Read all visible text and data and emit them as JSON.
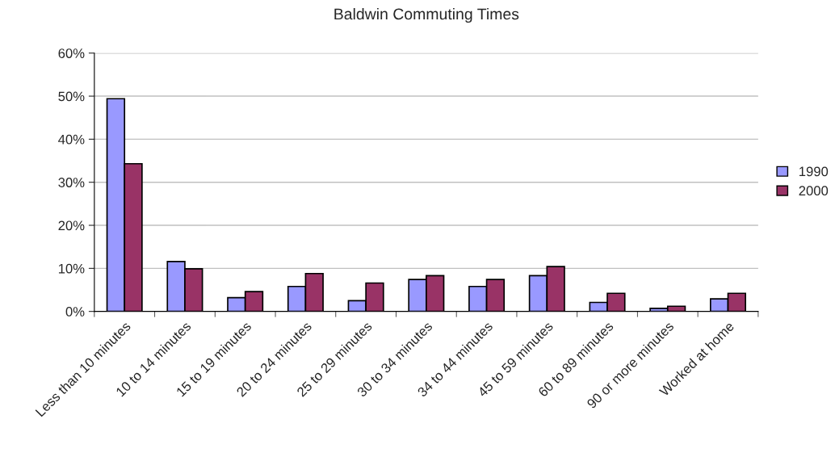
{
  "chart_data": {
    "type": "bar",
    "title": "Baldwin Commuting Times",
    "categories": [
      "Less than 10 minutes",
      "10 to 14 minutes",
      "15 to 19 minutes",
      "20 to 24 minutes",
      "25 to 29 minutes",
      "30 to 34 minutes",
      "34 to 44 minutes",
      "45 to 59 minutes",
      "60 to 89 minutes",
      "90 or more minutes",
      "Worked at home"
    ],
    "series": [
      {
        "name": "1990",
        "color": "#9999ff",
        "values": [
          49.4,
          11.6,
          3.2,
          5.8,
          2.5,
          7.4,
          5.8,
          8.3,
          2.1,
          0.7,
          2.9
        ]
      },
      {
        "name": "2000",
        "color": "#993366",
        "values": [
          34.3,
          9.9,
          4.6,
          8.8,
          6.6,
          8.3,
          7.4,
          10.4,
          4.2,
          1.2,
          4.2
        ]
      }
    ],
    "ylim": [
      0,
      60
    ],
    "yticks": [
      {
        "value": 0,
        "label": "0%"
      },
      {
        "value": 10,
        "label": "10%"
      },
      {
        "value": 20,
        "label": "20%"
      },
      {
        "value": 30,
        "label": "30%"
      },
      {
        "value": 40,
        "label": "40%"
      },
      {
        "value": 50,
        "label": "50%"
      },
      {
        "value": 60,
        "label": "60%"
      }
    ],
    "grid": "y",
    "legend": "right"
  }
}
